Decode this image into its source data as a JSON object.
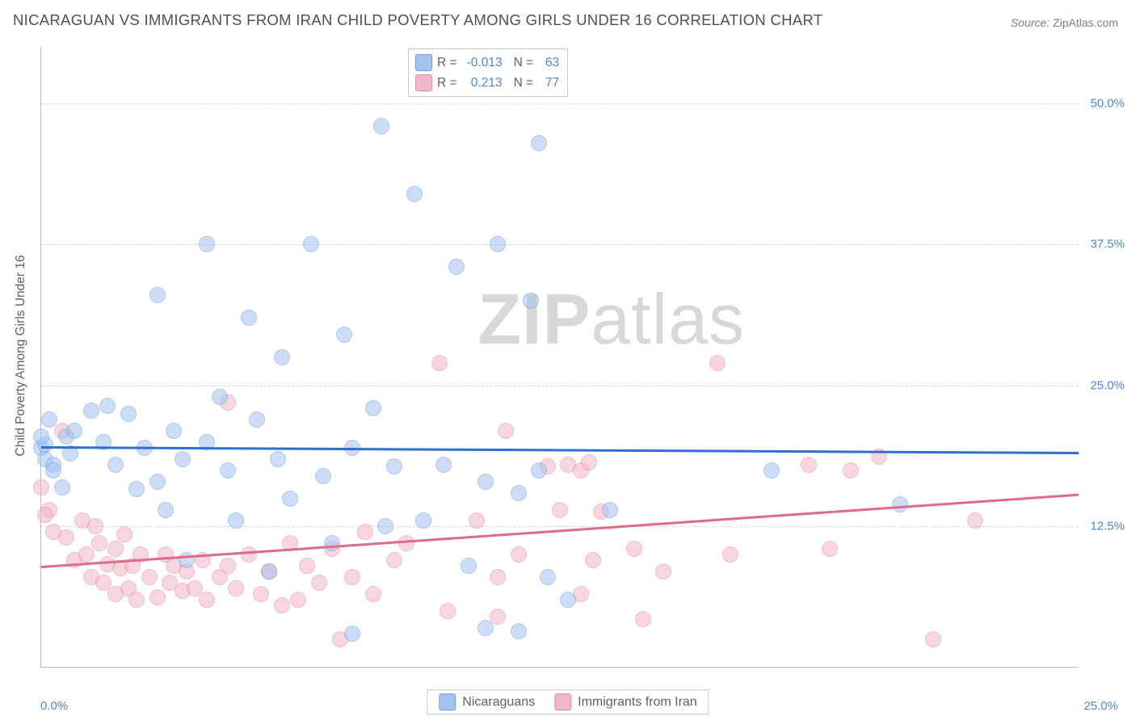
{
  "title": "NICARAGUAN VS IMMIGRANTS FROM IRAN CHILD POVERTY AMONG GIRLS UNDER 16 CORRELATION CHART",
  "source_label": "Source:",
  "source_value": "ZipAtlas.com",
  "ylabel": "Child Poverty Among Girls Under 16",
  "watermark_text_a": "ZIP",
  "watermark_text_b": "atlas",
  "chart": {
    "type": "scatter",
    "xlim": [
      0,
      25
    ],
    "ylim": [
      0,
      55
    ],
    "x_tick_labels": [
      "0.0%",
      "25.0%"
    ],
    "y_ticks": [
      {
        "v": 12.5,
        "label": "12.5%"
      },
      {
        "v": 25.0,
        "label": "25.0%"
      },
      {
        "v": 37.5,
        "label": "37.5%"
      },
      {
        "v": 50.0,
        "label": "50.0%"
      }
    ],
    "grid_color": "#d6d6d6",
    "axis_color": "#b8b8b8",
    "background": "#ffffff",
    "point_radius": 10,
    "point_opacity": 0.55,
    "series": [
      {
        "name": "Nicaraguans",
        "fill": "#a4c3ed",
        "stroke": "#6f9fe0",
        "trend_color": "#2f6fd0",
        "trend": {
          "y_at_x0": 19.6,
          "y_at_x25": 19.1
        },
        "R": "-0.013",
        "N": "63",
        "points": [
          [
            0.0,
            19.5
          ],
          [
            0.1,
            18.5
          ],
          [
            0.2,
            22.0
          ],
          [
            0.3,
            18.0
          ],
          [
            0.3,
            17.5
          ],
          [
            0.5,
            16.0
          ],
          [
            0.6,
            20.5
          ],
          [
            0.7,
            19.0
          ],
          [
            0.8,
            21.0
          ],
          [
            1.2,
            22.8
          ],
          [
            1.5,
            20.0
          ],
          [
            1.6,
            23.2
          ],
          [
            1.8,
            18.0
          ],
          [
            2.1,
            22.5
          ],
          [
            2.3,
            15.8
          ],
          [
            2.5,
            19.5
          ],
          [
            2.8,
            16.5
          ],
          [
            2.8,
            33.0
          ],
          [
            3.0,
            14.0
          ],
          [
            3.2,
            21.0
          ],
          [
            3.4,
            18.5
          ],
          [
            3.5,
            9.5
          ],
          [
            4.0,
            37.5
          ],
          [
            4.0,
            20.0
          ],
          [
            4.3,
            24.0
          ],
          [
            4.5,
            17.5
          ],
          [
            4.7,
            13.0
          ],
          [
            5.0,
            31.0
          ],
          [
            5.2,
            22.0
          ],
          [
            5.5,
            8.5
          ],
          [
            5.7,
            18.5
          ],
          [
            5.8,
            27.5
          ],
          [
            6.0,
            15.0
          ],
          [
            6.5,
            37.5
          ],
          [
            6.8,
            17.0
          ],
          [
            7.0,
            11.0
          ],
          [
            7.3,
            29.5
          ],
          [
            7.5,
            3.0
          ],
          [
            7.5,
            19.5
          ],
          [
            8.0,
            23.0
          ],
          [
            8.2,
            48.0
          ],
          [
            8.3,
            12.5
          ],
          [
            8.5,
            17.8
          ],
          [
            9.0,
            42.0
          ],
          [
            9.2,
            13.0
          ],
          [
            9.7,
            18.0
          ],
          [
            10.0,
            35.5
          ],
          [
            10.3,
            9.0
          ],
          [
            10.7,
            16.5
          ],
          [
            10.7,
            3.5
          ],
          [
            11.0,
            37.5
          ],
          [
            11.5,
            3.2
          ],
          [
            11.5,
            15.5
          ],
          [
            11.8,
            32.5
          ],
          [
            12.0,
            17.5
          ],
          [
            12.0,
            46.5
          ],
          [
            12.2,
            8.0
          ],
          [
            12.7,
            6.0
          ],
          [
            13.7,
            14.0
          ],
          [
            17.6,
            17.5
          ],
          [
            20.7,
            14.5
          ],
          [
            0.1,
            19.8
          ],
          [
            0.0,
            20.5
          ]
        ]
      },
      {
        "name": "Immigrants from Iran",
        "fill": "#f2b8c6",
        "stroke": "#e58aa1",
        "trend_color": "#e06a8b",
        "trend": {
          "y_at_x0": 9.0,
          "y_at_x25": 15.4
        },
        "R": "0.213",
        "N": "77",
        "points": [
          [
            0.0,
            16.0
          ],
          [
            0.2,
            14.0
          ],
          [
            0.3,
            12.0
          ],
          [
            0.5,
            21.0
          ],
          [
            0.6,
            11.5
          ],
          [
            0.8,
            9.5
          ],
          [
            1.0,
            13.0
          ],
          [
            1.1,
            10.0
          ],
          [
            1.2,
            8.0
          ],
          [
            1.3,
            12.5
          ],
          [
            1.4,
            11.0
          ],
          [
            1.5,
            7.5
          ],
          [
            1.6,
            9.2
          ],
          [
            1.8,
            10.5
          ],
          [
            1.8,
            6.5
          ],
          [
            1.9,
            8.8
          ],
          [
            2.0,
            11.8
          ],
          [
            2.1,
            7.0
          ],
          [
            2.2,
            9.0
          ],
          [
            2.3,
            6.0
          ],
          [
            2.4,
            10.0
          ],
          [
            2.6,
            8.0
          ],
          [
            2.8,
            6.2
          ],
          [
            3.0,
            10.0
          ],
          [
            3.1,
            7.5
          ],
          [
            3.2,
            9.0
          ],
          [
            3.4,
            6.8
          ],
          [
            3.5,
            8.5
          ],
          [
            3.7,
            7.0
          ],
          [
            3.9,
            9.5
          ],
          [
            4.0,
            6.0
          ],
          [
            4.3,
            8.0
          ],
          [
            4.5,
            9.0
          ],
          [
            4.5,
            23.5
          ],
          [
            4.7,
            7.0
          ],
          [
            5.0,
            10.0
          ],
          [
            5.3,
            6.5
          ],
          [
            5.5,
            8.5
          ],
          [
            5.8,
            5.5
          ],
          [
            6.0,
            11.0
          ],
          [
            6.2,
            6.0
          ],
          [
            6.4,
            9.0
          ],
          [
            6.7,
            7.5
          ],
          [
            7.0,
            10.5
          ],
          [
            7.2,
            2.5
          ],
          [
            7.5,
            8.0
          ],
          [
            7.8,
            12.0
          ],
          [
            8.0,
            6.5
          ],
          [
            8.5,
            9.5
          ],
          [
            8.8,
            11.0
          ],
          [
            9.6,
            27.0
          ],
          [
            9.8,
            5.0
          ],
          [
            10.5,
            13.0
          ],
          [
            11.0,
            8.0
          ],
          [
            11.0,
            4.5
          ],
          [
            11.2,
            21.0
          ],
          [
            11.5,
            10.0
          ],
          [
            12.2,
            17.8
          ],
          [
            12.5,
            14.0
          ],
          [
            12.7,
            18.0
          ],
          [
            13.0,
            6.5
          ],
          [
            13.0,
            17.5
          ],
          [
            13.2,
            18.2
          ],
          [
            13.5,
            13.8
          ],
          [
            13.3,
            9.5
          ],
          [
            14.3,
            10.5
          ],
          [
            14.5,
            4.3
          ],
          [
            15.0,
            8.5
          ],
          [
            16.3,
            27.0
          ],
          [
            16.6,
            10.0
          ],
          [
            18.5,
            18.0
          ],
          [
            19.0,
            10.5
          ],
          [
            19.5,
            17.5
          ],
          [
            20.2,
            18.7
          ],
          [
            21.5,
            2.5
          ],
          [
            22.5,
            13.0
          ],
          [
            0.1,
            13.5
          ]
        ]
      }
    ],
    "legend_bottom_labels": [
      "Nicaraguans",
      "Immigrants from Iran"
    ]
  }
}
